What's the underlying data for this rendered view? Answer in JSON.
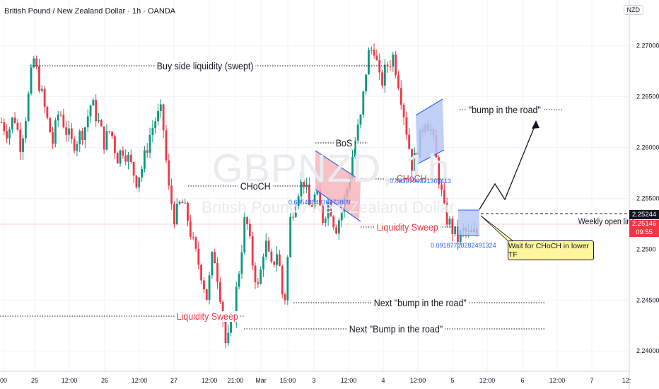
{
  "header": {
    "title": "British Pound / New Zealand Dollar · 1h · OANDA",
    "currency_badge": "NZD"
  },
  "watermark": {
    "symbol": "GBPNZD, 1h",
    "name": "British Pound / New Zealand Dollar"
  },
  "chart_data": {
    "type": "candlestick",
    "title": "British Pound / New Zealand Dollar · 1h · OANDA",
    "x_tick_labels": [
      "00",
      "25",
      "12:00",
      "26",
      "12:00",
      "27",
      "12:00",
      "21:00",
      "Mar",
      "15:00",
      "3",
      "12:00",
      "4",
      "12:00",
      "5",
      "12:00",
      "6",
      "12:00",
      "7",
      "12:"
    ],
    "y_tick_labels": [
      "2.27000",
      "2.26500",
      "2.26000",
      "2.25500",
      "2.24500",
      "2.24000"
    ],
    "ylim": [
      2.238,
      2.2745
    ],
    "grid": true,
    "current_price": "2.25146",
    "countdown": "09:55",
    "level_price": "2.25244",
    "price_scale_partial": "2.2500",
    "close_path": [
      2.2625,
      2.2615,
      2.2632,
      2.2602,
      2.264,
      2.2688,
      2.266,
      2.263,
      2.2605,
      2.2638,
      2.2618,
      2.2603,
      2.261,
      2.262,
      2.2645,
      2.2627,
      2.2605,
      2.2618,
      2.259,
      2.26,
      2.2585,
      2.2568,
      2.2582,
      2.261,
      2.2628,
      2.2635,
      2.256,
      2.253,
      2.2548,
      2.253,
      2.25,
      2.248,
      2.2452,
      2.25,
      2.246,
      2.2402,
      2.243,
      2.248,
      2.2535,
      2.249,
      2.246,
      2.251,
      2.248,
      2.25,
      2.244,
      2.253,
      2.2556,
      2.257,
      2.254,
      2.2555,
      2.253,
      2.2548,
      2.252,
      2.2538,
      2.2565,
      2.2605,
      2.263,
      2.269,
      2.27,
      2.266,
      2.268,
      2.269,
      2.266,
      2.262,
      2.258,
      2.2605,
      2.263,
      2.2615,
      2.2575,
      2.2535,
      2.2522,
      2.251,
      2.2518,
      2.2513,
      2.2516
    ],
    "annotations": {
      "buy_side": "Buy side liquidity (swept)",
      "bos": "BoS",
      "choch_left": "CHoCH",
      "choch_right": "CHoCH",
      "bump": "\"bump in the road\"",
      "ls_mid": "Liquidity Sweep",
      "ls_left": "Liquidity Sweep",
      "next_bump": "Next \"bump in the road\"",
      "next_bump2": "Next \"Bump in the road\"",
      "weekly_open": "Weekly open line",
      "callout": "Wait for CHoCH in lower TF",
      "fib1": "0.6354834936973809",
      "fib2": "0.4830790321303113",
      "fib3": "0.09187718282491324"
    }
  },
  "colors": {
    "up": "#089981",
    "down": "#f23645",
    "channel_fill": "#b7c7f5",
    "channel_red": "#f7b0b6"
  }
}
